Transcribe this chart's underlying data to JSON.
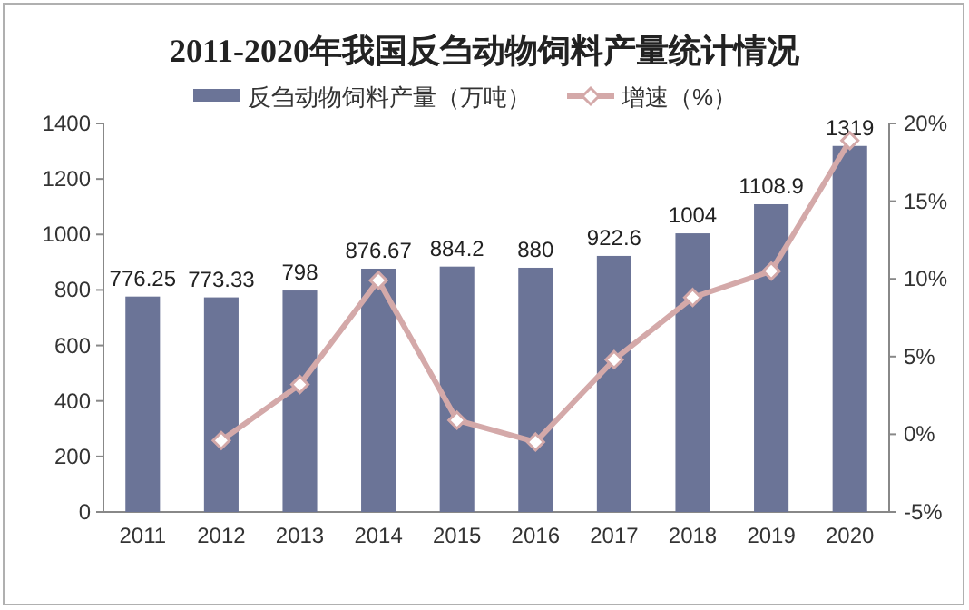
{
  "chart_data": {
    "type": "bar",
    "title": "2011-2020年我国反刍动物饲料产量统计情况",
    "categories": [
      "2011",
      "2012",
      "2013",
      "2014",
      "2015",
      "2016",
      "2017",
      "2018",
      "2019",
      "2020"
    ],
    "series": [
      {
        "name": "反刍动物饲料产量（万吨）",
        "color": "#6b7497",
        "values": [
          776.25,
          773.33,
          798,
          876.67,
          884.2,
          880,
          922.6,
          1004,
          1108.9,
          1319
        ],
        "value_labels": [
          "776.25",
          "773.33",
          "798",
          "876.67",
          "884.2",
          "880",
          "922.6",
          "1004",
          "1108.9",
          "1319"
        ]
      },
      {
        "name": "增速（%）",
        "type": "line",
        "axis": "y2",
        "color": "#d4a9a9",
        "marker": "diamond",
        "values": [
          null,
          -0.4,
          3.2,
          9.9,
          0.9,
          -0.5,
          4.8,
          8.8,
          10.5,
          18.9
        ]
      }
    ],
    "ylim": [
      0,
      1400
    ],
    "yticks": [
      0,
      200,
      400,
      600,
      800,
      1000,
      1200,
      1400
    ],
    "y2lim": [
      -5,
      20
    ],
    "y2ticks": [
      {
        "value": -5,
        "label": "-5%"
      },
      {
        "value": 0,
        "label": "0%"
      },
      {
        "value": 5,
        "label": "5%"
      },
      {
        "value": 10,
        "label": "10%"
      },
      {
        "value": 15,
        "label": "15%"
      },
      {
        "value": 20,
        "label": "20%"
      }
    ],
    "legend": "top",
    "grid": false
  }
}
